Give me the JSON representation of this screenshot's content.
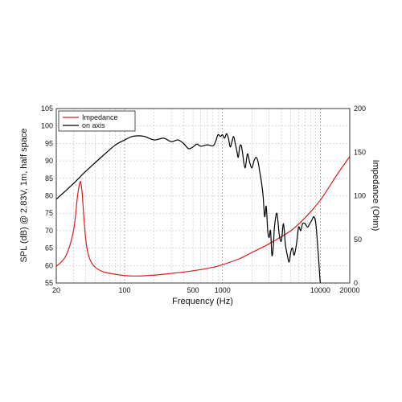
{
  "chart_data": {
    "type": "line",
    "title": "",
    "xlabel": "Frequency (Hz)",
    "ylabel": "SPL (dB) @ 2.83V, 1m, half space",
    "y2label": "Impedance (Ohm)",
    "xscale": "log",
    "xlim": [
      20,
      20000
    ],
    "ylim": [
      55,
      105
    ],
    "y2lim": [
      0,
      200
    ],
    "grid": true,
    "legend_position": "top-left",
    "x_ticks": [
      {
        "value": 20,
        "label": "20"
      },
      {
        "value": 100,
        "label": "100"
      },
      {
        "value": 500,
        "label": "500"
      },
      {
        "value": 1000,
        "label": "1000"
      },
      {
        "value": 10000,
        "label": "10000"
      },
      {
        "value": 20000,
        "label": "20000"
      }
    ],
    "y_ticks": [
      {
        "value": 55,
        "label": "55"
      },
      {
        "value": 60,
        "label": "60"
      },
      {
        "value": 65,
        "label": "65"
      },
      {
        "value": 70,
        "label": "70"
      },
      {
        "value": 75,
        "label": "75"
      },
      {
        "value": 80,
        "label": "80"
      },
      {
        "value": 85,
        "label": "85"
      },
      {
        "value": 90,
        "label": "90"
      },
      {
        "value": 95,
        "label": "95"
      },
      {
        "value": 100,
        "label": "100"
      },
      {
        "value": 105,
        "label": "105"
      }
    ],
    "y2_ticks": [
      {
        "value": 0,
        "label": "0"
      },
      {
        "value": 50,
        "label": "50"
      },
      {
        "value": 100,
        "label": "100"
      },
      {
        "value": 150,
        "label": "150"
      },
      {
        "value": 200,
        "label": "200"
      }
    ],
    "series": [
      {
        "name": "Impedance",
        "axis": "right",
        "color": "#d62020",
        "x": [
          20,
          25,
          30,
          33,
          35,
          36,
          37,
          38,
          40,
          42,
          45,
          50,
          60,
          80,
          100,
          130,
          200,
          300,
          500,
          800,
          1000,
          1500,
          2000,
          3000,
          5000,
          7000,
          10000,
          15000,
          20000
        ],
        "y": [
          19,
          31,
          60,
          100,
          116,
          112,
          100,
          80,
          50,
          35,
          25,
          18,
          13,
          10,
          8.5,
          8,
          9,
          11,
          14,
          18,
          21,
          28,
          35,
          45,
          60,
          75,
          95,
          125,
          145
        ]
      },
      {
        "name": "on axis",
        "axis": "left",
        "color": "#000000",
        "x": [
          20,
          30,
          40,
          60,
          80,
          100,
          120,
          140,
          160,
          200,
          250,
          300,
          350,
          400,
          450,
          500,
          550,
          600,
          700,
          800,
          850,
          900,
          950,
          1000,
          1050,
          1100,
          1150,
          1200,
          1250,
          1300,
          1350,
          1400,
          1450,
          1500,
          1550,
          1600,
          1700,
          1800,
          1900,
          2000,
          2100,
          2200,
          2300,
          2400,
          2500,
          2600,
          2700,
          2800,
          2900,
          3000,
          3100,
          3200,
          3300,
          3400,
          3600,
          3800,
          4000,
          4200,
          4400,
          4600,
          4800,
          5000,
          5200,
          5400,
          5700,
          6000,
          6300,
          6600,
          7000,
          7400,
          7800,
          8200,
          8600,
          9000,
          9500,
          10000,
          10500
        ],
        "y": [
          79,
          83.5,
          87,
          91.5,
          94.5,
          96,
          97,
          97.2,
          97,
          96,
          96.5,
          95.5,
          96,
          95,
          93.5,
          94,
          94.8,
          94.2,
          94.6,
          94.3,
          95.5,
          97.5,
          97,
          97.5,
          96.5,
          97.8,
          96.5,
          94,
          95.5,
          97,
          95,
          93,
          91,
          94,
          94.5,
          92.5,
          88,
          92,
          89.5,
          88,
          90,
          91,
          90,
          87,
          84,
          80,
          74,
          77,
          70,
          68,
          70,
          63,
          65,
          71,
          75,
          69,
          67,
          72,
          66,
          63,
          61,
          64,
          65,
          63,
          66,
          71,
          70,
          72,
          72,
          71,
          72,
          73,
          74,
          72,
          64,
          55,
          50
        ]
      }
    ]
  }
}
